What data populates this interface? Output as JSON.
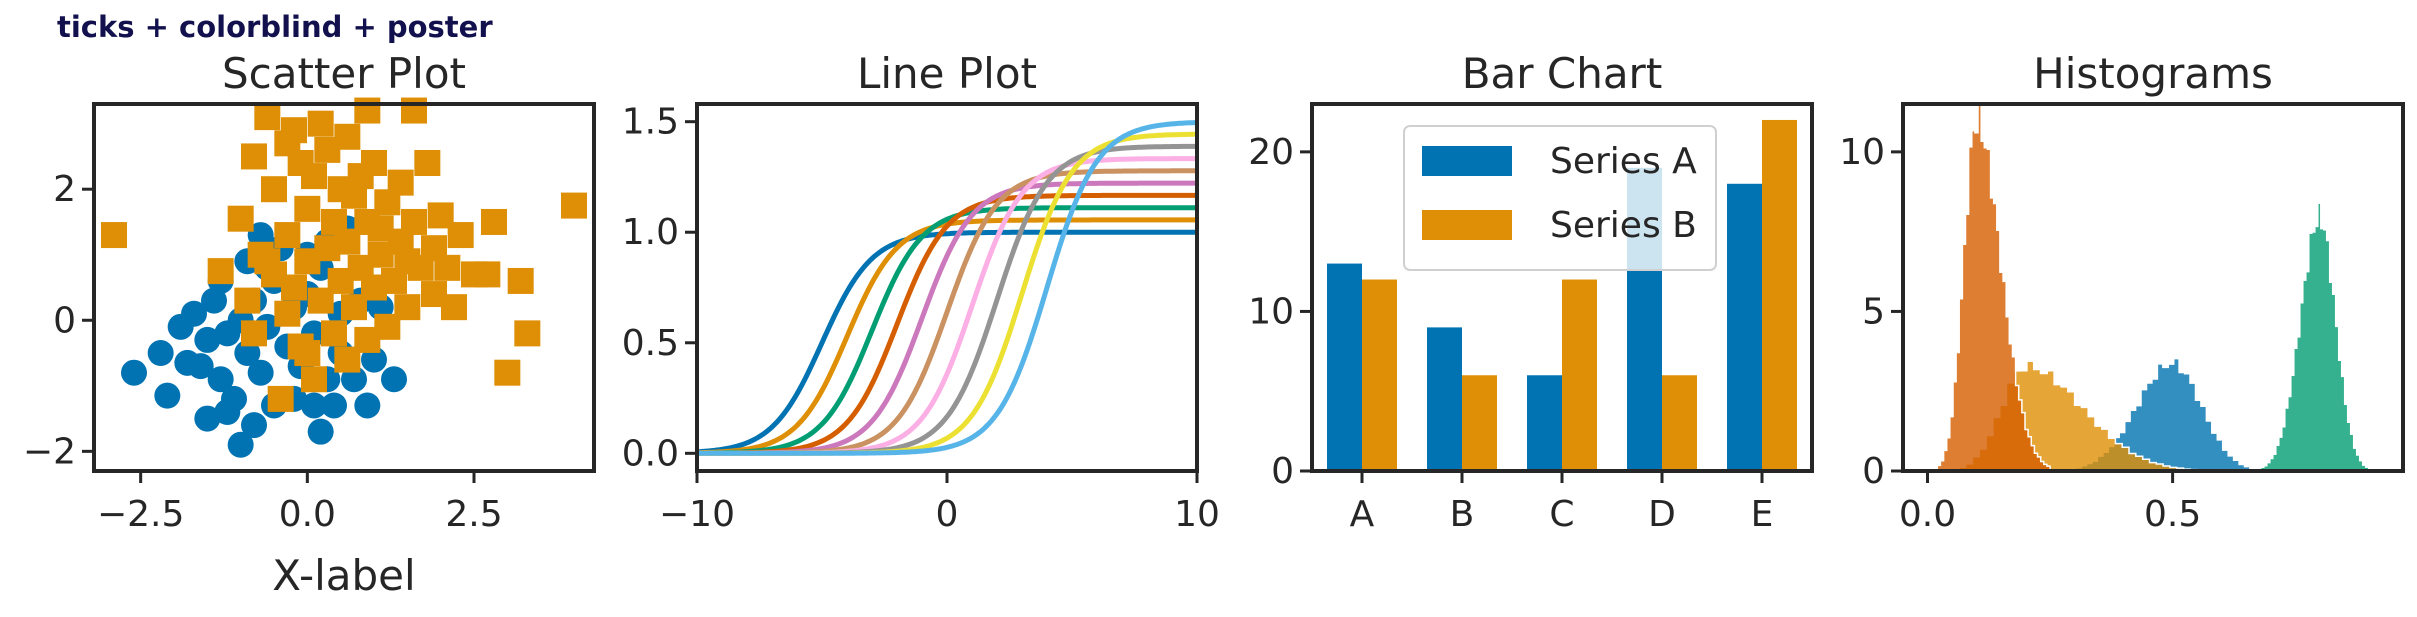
{
  "suptitle": "ticks + colorblind + poster",
  "colors": [
    "#0173b2",
    "#de8f05",
    "#029e73",
    "#d55e00",
    "#cc78bc",
    "#ca9161",
    "#fbafe4",
    "#949494",
    "#ece133",
    "#56b4e9"
  ],
  "chart_data": [
    {
      "type": "scatter",
      "title": "Scatter Plot",
      "xlabel": "X-label",
      "ylabel": "",
      "xlim": [
        -3.2,
        4.3
      ],
      "ylim": [
        -2.3,
        3.3
      ],
      "xticks": [
        -2.5,
        0.0,
        2.5
      ],
      "xtick_labels": [
        "−2.5",
        "0.0",
        "2.5"
      ],
      "yticks": [
        -2,
        0,
        2
      ],
      "ytick_labels": [
        "−2",
        "0",
        "2"
      ],
      "series": [
        {
          "marker": "circle",
          "color": "#0173b2",
          "points": [
            [
              -2.6,
              -0.8
            ],
            [
              -2.1,
              -1.15
            ],
            [
              -2.2,
              -0.5
            ],
            [
              -1.9,
              -0.1
            ],
            [
              -1.8,
              -0.65
            ],
            [
              -1.7,
              0.1
            ],
            [
              -1.6,
              -0.7
            ],
            [
              -1.5,
              -0.3
            ],
            [
              -1.5,
              -1.5
            ],
            [
              -1.4,
              0.3
            ],
            [
              -1.3,
              -0.9
            ],
            [
              -1.3,
              0.6
            ],
            [
              -1.2,
              -0.2
            ],
            [
              -1.1,
              -1.2
            ],
            [
              -1.0,
              0.0
            ],
            [
              -1.0,
              -1.9
            ],
            [
              -0.9,
              0.9
            ],
            [
              -0.9,
              -0.5
            ],
            [
              -0.8,
              -1.6
            ],
            [
              -0.8,
              0.3
            ],
            [
              -0.7,
              -0.8
            ],
            [
              -0.7,
              1.3
            ],
            [
              -0.6,
              -0.1
            ],
            [
              -0.5,
              -1.3
            ],
            [
              -0.5,
              0.6
            ],
            [
              -0.4,
              1.1
            ],
            [
              -0.3,
              -0.4
            ],
            [
              -0.2,
              0.2
            ],
            [
              -0.2,
              -1.2
            ],
            [
              -0.1,
              -0.7
            ],
            [
              0.0,
              1.0
            ],
            [
              0.0,
              0.4
            ],
            [
              0.1,
              -1.3
            ],
            [
              0.1,
              -0.2
            ],
            [
              0.2,
              0.8
            ],
            [
              0.3,
              -0.9
            ],
            [
              0.3,
              1.2
            ],
            [
              0.4,
              -1.3
            ],
            [
              0.5,
              0.1
            ],
            [
              0.5,
              -0.5
            ],
            [
              0.6,
              1.4
            ],
            [
              0.7,
              -0.9
            ],
            [
              0.8,
              0.3
            ],
            [
              0.9,
              -1.3
            ],
            [
              1.0,
              -0.6
            ],
            [
              1.1,
              0.2
            ],
            [
              1.3,
              -0.9
            ],
            [
              -1.2,
              -1.4
            ],
            [
              -0.6,
              0.8
            ],
            [
              0.2,
              -1.7
            ]
          ]
        },
        {
          "marker": "square",
          "color": "#de8f05",
          "points": [
            [
              -2.9,
              1.3
            ],
            [
              -1.3,
              0.75
            ],
            [
              -1.0,
              1.55
            ],
            [
              -0.9,
              0.3
            ],
            [
              -0.8,
              -0.2
            ],
            [
              -0.8,
              2.5
            ],
            [
              -0.7,
              1.0
            ],
            [
              -0.6,
              3.1
            ],
            [
              -0.5,
              0.7
            ],
            [
              -0.5,
              2.0
            ],
            [
              -0.4,
              -1.2
            ],
            [
              -0.3,
              1.3
            ],
            [
              -0.3,
              0.1
            ],
            [
              -0.2,
              2.9
            ],
            [
              -0.2,
              0.5
            ],
            [
              -0.1,
              2.4
            ],
            [
              -0.1,
              -0.4
            ],
            [
              0.0,
              1.7
            ],
            [
              0.0,
              0.9
            ],
            [
              0.1,
              2.2
            ],
            [
              0.1,
              -0.9
            ],
            [
              0.2,
              3.0
            ],
            [
              0.2,
              0.3
            ],
            [
              0.3,
              1.1
            ],
            [
              0.3,
              2.6
            ],
            [
              0.4,
              -0.2
            ],
            [
              0.4,
              1.5
            ],
            [
              0.5,
              0.6
            ],
            [
              0.5,
              2.0
            ],
            [
              0.6,
              -0.6
            ],
            [
              0.6,
              1.2
            ],
            [
              0.7,
              0.2
            ],
            [
              0.7,
              1.9
            ],
            [
              0.8,
              2.2
            ],
            [
              0.8,
              0.8
            ],
            [
              0.9,
              -0.3
            ],
            [
              0.9,
              1.5
            ],
            [
              1.0,
              0.5
            ],
            [
              1.0,
              2.4
            ],
            [
              1.1,
              1.0
            ],
            [
              1.2,
              -0.1
            ],
            [
              1.2,
              1.8
            ],
            [
              1.3,
              0.6
            ],
            [
              1.4,
              2.1
            ],
            [
              1.4,
              1.2
            ],
            [
              1.5,
              0.2
            ],
            [
              1.6,
              3.2
            ],
            [
              1.6,
              1.5
            ],
            [
              1.7,
              0.8
            ],
            [
              1.8,
              2.4
            ],
            [
              1.9,
              0.4
            ],
            [
              1.9,
              1.1
            ],
            [
              2.0,
              1.6
            ],
            [
              2.1,
              0.8
            ],
            [
              2.2,
              0.2
            ],
            [
              2.3,
              1.3
            ],
            [
              2.5,
              0.7
            ],
            [
              2.7,
              0.7
            ],
            [
              2.8,
              1.5
            ],
            [
              3.0,
              -0.8
            ],
            [
              3.2,
              0.6
            ],
            [
              3.3,
              -0.2
            ],
            [
              4.0,
              1.75
            ],
            [
              0.9,
              3.2
            ],
            [
              -0.3,
              2.7
            ],
            [
              1.1,
              1.4
            ],
            [
              0.0,
              -0.5
            ],
            [
              1.5,
              0.9
            ],
            [
              -0.6,
              0.9
            ],
            [
              0.6,
              2.8
            ]
          ]
        }
      ]
    },
    {
      "type": "line",
      "title": "Line Plot",
      "xlabel": "",
      "ylabel": "",
      "xlim": [
        -10,
        10
      ],
      "ylim": [
        -0.08,
        1.58
      ],
      "xticks": [
        -10,
        0,
        10
      ],
      "xtick_labels": [
        "−10",
        "0",
        "10"
      ],
      "yticks": [
        0.0,
        0.5,
        1.0,
        1.5
      ],
      "ytick_labels": [
        "0.0",
        "0.5",
        "1.0",
        "1.5"
      ],
      "series": [
        {
          "shift": -5.0,
          "amplitude": 1.0
        },
        {
          "shift": -4.0,
          "amplitude": 1.0556
        },
        {
          "shift": -3.0,
          "amplitude": 1.1111
        },
        {
          "shift": -2.0,
          "amplitude": 1.1667
        },
        {
          "shift": -1.0,
          "amplitude": 1.2222
        },
        {
          "shift": 0.0,
          "amplitude": 1.2778
        },
        {
          "shift": 1.0,
          "amplitude": 1.3333
        },
        {
          "shift": 2.0,
          "amplitude": 1.3889
        },
        {
          "shift": 3.0,
          "amplitude": 1.4444
        },
        {
          "shift": 4.0,
          "amplitude": 1.5
        }
      ]
    },
    {
      "type": "bar",
      "title": "Bar Chart",
      "xlabel": "",
      "ylabel": "",
      "ylim": [
        0,
        23
      ],
      "yticks": [
        0,
        10,
        20
      ],
      "ytick_labels": [
        "0",
        "10",
        "20"
      ],
      "categories": [
        "A",
        "B",
        "C",
        "D",
        "E"
      ],
      "legend_position": "top",
      "series": [
        {
          "name": "Series A",
          "color": "#0173b2",
          "values": [
            13,
            9,
            6,
            19,
            18
          ]
        },
        {
          "name": "Series B",
          "color": "#de8f05",
          "values": [
            12,
            6,
            12,
            6,
            22
          ]
        }
      ]
    },
    {
      "type": "histogram",
      "title": "Histograms",
      "xlabel": "",
      "ylabel": "",
      "xlim": [
        -0.05,
        0.97
      ],
      "ylim": [
        0,
        11.5
      ],
      "xticks": [
        0.0,
        0.5
      ],
      "xtick_labels": [
        "0.0",
        "0.5"
      ],
      "yticks": [
        0,
        5,
        10
      ],
      "ytick_labels": [
        "0",
        "5",
        "10"
      ],
      "series": [
        {
          "color": "#0173b2",
          "peak_x": 0.5,
          "peak_density": 3.4,
          "range": [
            0.28,
            0.68
          ]
        },
        {
          "color": "#de8f05",
          "peak_x": 0.2,
          "peak_density": 3.3,
          "range": [
            0.05,
            0.55
          ]
        },
        {
          "color": "#029e73",
          "peak_x": 0.8,
          "peak_density": 8.0,
          "range": [
            0.68,
            0.9
          ]
        },
        {
          "color": "#d55e00",
          "peak_x": 0.1,
          "peak_density": 11.0,
          "range": [
            0.02,
            0.25
          ]
        }
      ]
    }
  ]
}
